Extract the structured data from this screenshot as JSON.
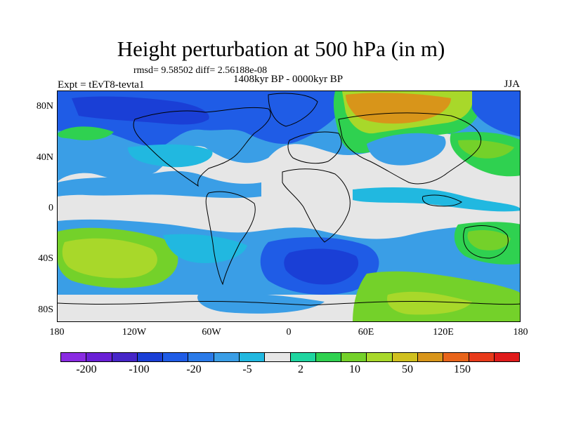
{
  "title": "Height perturbation at 500 hPa (in m)",
  "stats": "rmsd= 9.58502 diff= 2.56188e-08",
  "subtitle": "1408kyr BP - 0000kyr BP",
  "expt": "Expt = tEvT8-tevta1",
  "season": "JJA",
  "y_axis": {
    "labels": [
      "80N",
      "40N",
      "0",
      "40S",
      "80S"
    ]
  },
  "x_axis": {
    "labels": [
      "180",
      "120W",
      "60W",
      "0",
      "60E",
      "120E",
      "180"
    ]
  },
  "colorbar": {
    "colors": [
      "#8a2be2",
      "#6a1fd6",
      "#4626c8",
      "#1a3fd6",
      "#1f5ce6",
      "#2a7ae8",
      "#3a9ee6",
      "#21b8e0",
      "#e6e6e6",
      "#1fd5a0",
      "#2fd150",
      "#74d12a",
      "#a8d82a",
      "#d0c01e",
      "#d8951a",
      "#e8641a",
      "#e83a1a",
      "#e01b1b"
    ],
    "labels": [
      "-200",
      "-100",
      "-20",
      "-5",
      "2",
      "10",
      "50",
      "150"
    ]
  },
  "legend_colors": {
    "neutral": "#e6e6e6",
    "light_blue": "#3a9ee6",
    "cyan": "#21b8e0",
    "blue": "#1f5ce6",
    "dark_blue": "#1a3fd6",
    "green": "#2fd150",
    "lime": "#74d12a",
    "yellowgreen": "#a8d82a",
    "orange": "#d8951a"
  }
}
